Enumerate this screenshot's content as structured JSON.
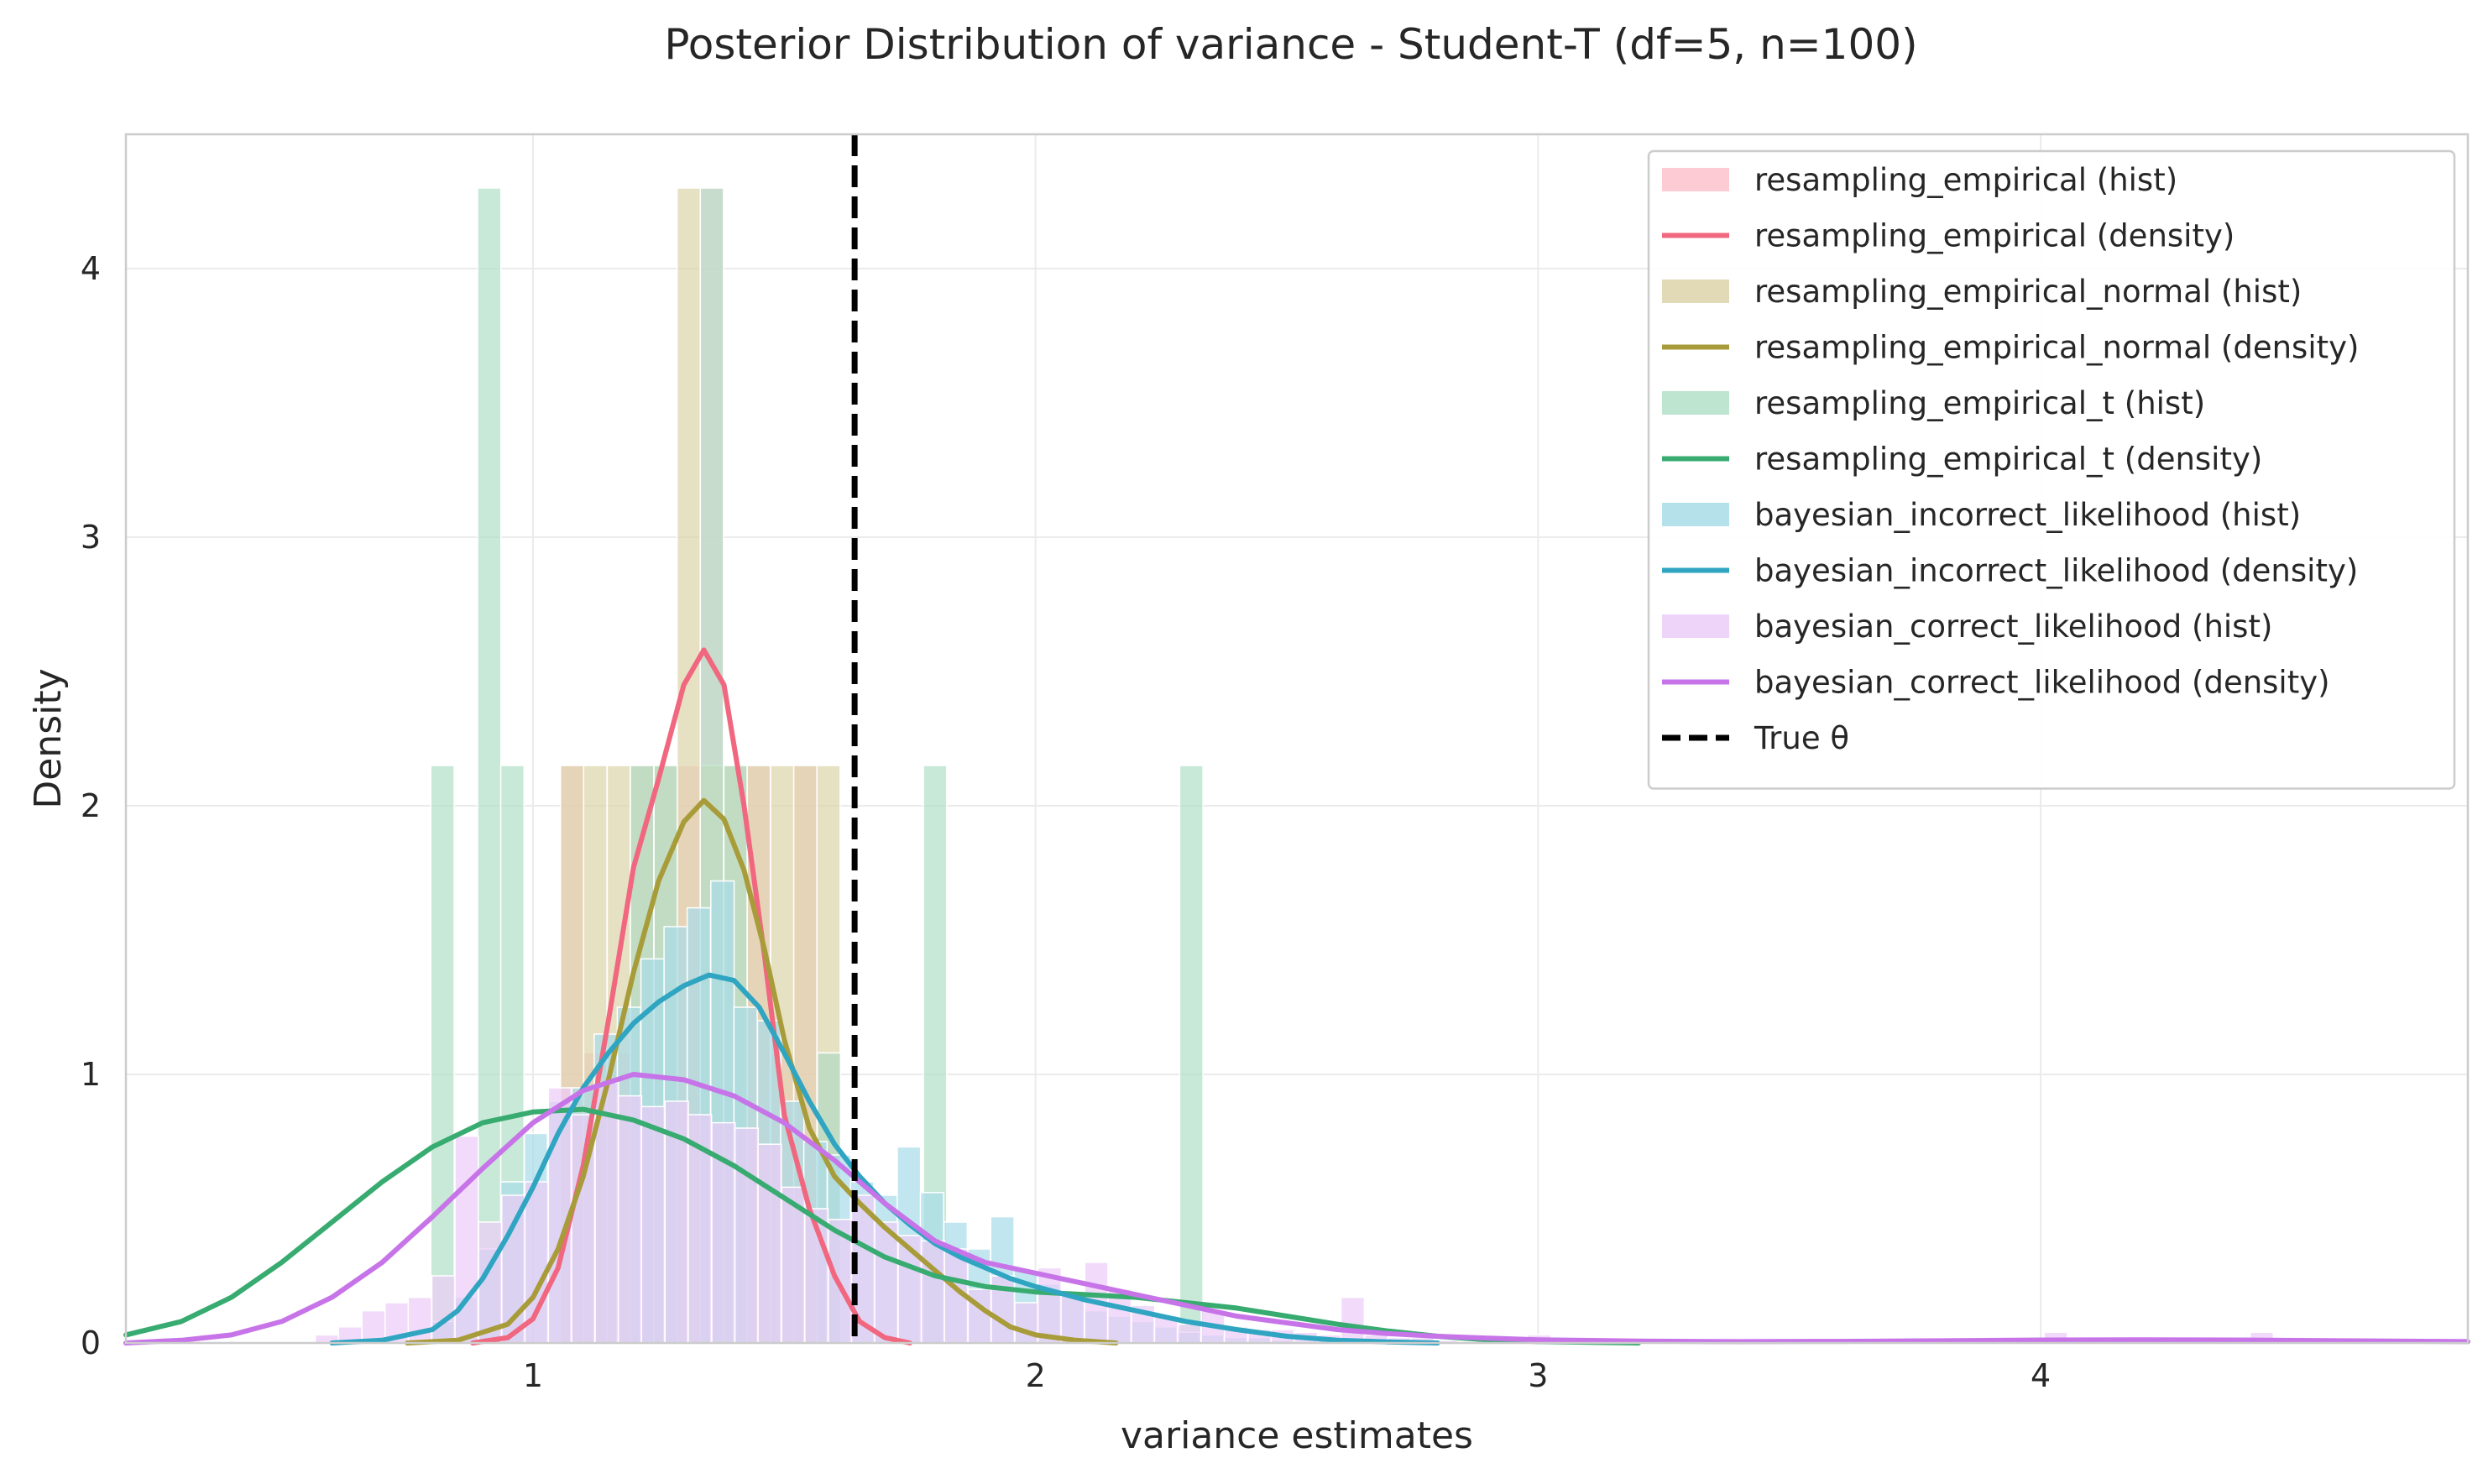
{
  "chart_data": {
    "type": "histogram+density",
    "title": "Posterior Distribution of variance - Student-T (df=5, n=100)",
    "xlabel": "variance estimates",
    "ylabel": "Density",
    "xlim": [
      0.19,
      4.85
    ],
    "ylim": [
      0,
      4.5
    ],
    "xticks": [
      1,
      2,
      3,
      4
    ],
    "yticks": [
      0,
      1,
      2,
      3,
      4
    ],
    "grid": true,
    "legend_position": "top-right",
    "true_theta": {
      "label": "True θ",
      "x": 1.64,
      "color": "#000000"
    },
    "series": [
      {
        "name": "resampling_empirical",
        "hist_label": "resampling_empirical (hist)",
        "density_label": "resampling_empirical (density)",
        "color": "#f0677f",
        "fill": "#fbc2cc",
        "bin_width": 0.0464,
        "hist": [
          [
            1.078,
            2.15
          ],
          [
            1.124,
            1.08
          ],
          [
            1.171,
            1.08
          ],
          [
            1.217,
            2.15
          ],
          [
            1.264,
            2.15
          ],
          [
            1.31,
            2.15
          ],
          [
            1.356,
            4.3
          ],
          [
            1.403,
            2.15
          ],
          [
            1.449,
            2.15
          ],
          [
            1.496,
            1.08
          ],
          [
            1.542,
            2.15
          ],
          [
            1.588,
            1.08
          ]
        ],
        "density": [
          [
            0.88,
            0.0
          ],
          [
            0.95,
            0.02
          ],
          [
            1.0,
            0.09
          ],
          [
            1.05,
            0.28
          ],
          [
            1.1,
            0.66
          ],
          [
            1.15,
            1.2
          ],
          [
            1.2,
            1.77
          ],
          [
            1.25,
            2.1
          ],
          [
            1.3,
            2.45
          ],
          [
            1.34,
            2.58
          ],
          [
            1.38,
            2.45
          ],
          [
            1.42,
            2.0
          ],
          [
            1.46,
            1.45
          ],
          [
            1.5,
            0.85
          ],
          [
            1.55,
            0.5
          ],
          [
            1.6,
            0.25
          ],
          [
            1.65,
            0.08
          ],
          [
            1.7,
            0.02
          ],
          [
            1.75,
            0.0
          ]
        ]
      },
      {
        "name": "resampling_empirical_normal",
        "hist_label": "resampling_empirical_normal (hist)",
        "density_label": "resampling_empirical_normal (density)",
        "color": "#a89c3a",
        "fill": "#ddd4aa",
        "bin_width": 0.0464,
        "hist": [
          [
            1.078,
            2.15
          ],
          [
            1.124,
            2.15
          ],
          [
            1.171,
            2.15
          ],
          [
            1.217,
            2.15
          ],
          [
            1.264,
            2.15
          ],
          [
            1.31,
            4.3
          ],
          [
            1.356,
            2.15
          ],
          [
            1.403,
            2.15
          ],
          [
            1.449,
            2.15
          ],
          [
            1.496,
            2.15
          ],
          [
            1.542,
            2.15
          ],
          [
            1.588,
            2.15
          ]
        ],
        "density": [
          [
            0.75,
            0.0
          ],
          [
            0.85,
            0.01
          ],
          [
            0.95,
            0.07
          ],
          [
            1.0,
            0.17
          ],
          [
            1.05,
            0.35
          ],
          [
            1.1,
            0.62
          ],
          [
            1.15,
            0.98
          ],
          [
            1.2,
            1.38
          ],
          [
            1.25,
            1.72
          ],
          [
            1.3,
            1.94
          ],
          [
            1.34,
            2.02
          ],
          [
            1.38,
            1.95
          ],
          [
            1.42,
            1.76
          ],
          [
            1.46,
            1.47
          ],
          [
            1.5,
            1.13
          ],
          [
            1.55,
            0.8
          ],
          [
            1.6,
            0.62
          ],
          [
            1.65,
            0.52
          ],
          [
            1.7,
            0.43
          ],
          [
            1.75,
            0.35
          ],
          [
            1.8,
            0.27
          ],
          [
            1.85,
            0.19
          ],
          [
            1.9,
            0.12
          ],
          [
            1.95,
            0.06
          ],
          [
            2.0,
            0.03
          ],
          [
            2.08,
            0.01
          ],
          [
            2.16,
            0.0
          ]
        ]
      },
      {
        "name": "resampling_empirical_t",
        "hist_label": "resampling_empirical_t (hist)",
        "density_label": "resampling_empirical_t (density)",
        "color": "#37ab70",
        "fill": "#b2e0c8",
        "bin_width": 0.0464,
        "hist": [
          [
            0.82,
            2.15
          ],
          [
            0.913,
            4.3
          ],
          [
            0.959,
            2.15
          ],
          [
            1.217,
            2.15
          ],
          [
            1.264,
            2.15
          ],
          [
            1.356,
            4.3
          ],
          [
            1.403,
            2.15
          ],
          [
            1.589,
            1.08
          ],
          [
            1.8,
            2.15
          ],
          [
            2.31,
            2.15
          ]
        ],
        "density": [
          [
            0.19,
            0.03
          ],
          [
            0.3,
            0.08
          ],
          [
            0.4,
            0.17
          ],
          [
            0.5,
            0.3
          ],
          [
            0.6,
            0.45
          ],
          [
            0.7,
            0.6
          ],
          [
            0.8,
            0.73
          ],
          [
            0.9,
            0.82
          ],
          [
            1.0,
            0.86
          ],
          [
            1.1,
            0.87
          ],
          [
            1.2,
            0.83
          ],
          [
            1.3,
            0.76
          ],
          [
            1.4,
            0.66
          ],
          [
            1.5,
            0.54
          ],
          [
            1.6,
            0.42
          ],
          [
            1.7,
            0.32
          ],
          [
            1.8,
            0.25
          ],
          [
            1.9,
            0.21
          ],
          [
            2.0,
            0.19
          ],
          [
            2.1,
            0.18
          ],
          [
            2.2,
            0.17
          ],
          [
            2.3,
            0.15
          ],
          [
            2.4,
            0.13
          ],
          [
            2.5,
            0.1
          ],
          [
            2.6,
            0.07
          ],
          [
            2.7,
            0.045
          ],
          [
            2.8,
            0.025
          ],
          [
            2.9,
            0.012
          ],
          [
            3.0,
            0.005
          ],
          [
            3.2,
            0.0
          ]
        ]
      },
      {
        "name": "bayesian_incorrect_likelihood",
        "hist_label": "bayesian_incorrect_likelihood (hist)",
        "density_label": "bayesian_incorrect_likelihood (density)",
        "color": "#2fa5c1",
        "fill": "#a8dce8",
        "bin_width": 0.0464,
        "hist": [
          [
            0.82,
            0.08
          ],
          [
            0.866,
            0.17
          ],
          [
            0.913,
            0.35
          ],
          [
            0.959,
            0.6
          ],
          [
            1.006,
            0.78
          ],
          [
            1.052,
            0.9
          ],
          [
            1.098,
            0.95
          ],
          [
            1.145,
            1.15
          ],
          [
            1.191,
            1.25
          ],
          [
            1.238,
            1.43
          ],
          [
            1.284,
            1.55
          ],
          [
            1.33,
            1.62
          ],
          [
            1.377,
            1.72
          ],
          [
            1.423,
            1.25
          ],
          [
            1.47,
            1.2
          ],
          [
            1.516,
            0.9
          ],
          [
            1.562,
            0.75
          ],
          [
            1.609,
            0.7
          ],
          [
            1.655,
            0.6
          ],
          [
            1.702,
            0.55
          ],
          [
            1.748,
            0.73
          ],
          [
            1.794,
            0.56
          ],
          [
            1.841,
            0.45
          ],
          [
            1.887,
            0.35
          ],
          [
            1.934,
            0.47
          ],
          [
            1.98,
            0.27
          ],
          [
            2.026,
            0.22
          ],
          [
            2.073,
            0.18
          ],
          [
            2.119,
            0.12
          ],
          [
            2.166,
            0.1
          ],
          [
            2.212,
            0.08
          ],
          [
            2.258,
            0.06
          ],
          [
            2.305,
            0.04
          ],
          [
            2.351,
            0.03
          ],
          [
            2.398,
            0.02
          ],
          [
            2.444,
            0.02
          ],
          [
            2.49,
            0.01
          ]
        ],
        "density": [
          [
            0.6,
            0.0
          ],
          [
            0.7,
            0.01
          ],
          [
            0.8,
            0.05
          ],
          [
            0.85,
            0.12
          ],
          [
            0.9,
            0.24
          ],
          [
            0.95,
            0.4
          ],
          [
            1.0,
            0.58
          ],
          [
            1.05,
            0.78
          ],
          [
            1.1,
            0.95
          ],
          [
            1.15,
            1.08
          ],
          [
            1.2,
            1.19
          ],
          [
            1.25,
            1.27
          ],
          [
            1.3,
            1.33
          ],
          [
            1.35,
            1.37
          ],
          [
            1.4,
            1.35
          ],
          [
            1.45,
            1.25
          ],
          [
            1.5,
            1.08
          ],
          [
            1.55,
            0.9
          ],
          [
            1.6,
            0.74
          ],
          [
            1.65,
            0.62
          ],
          [
            1.7,
            0.52
          ],
          [
            1.75,
            0.44
          ],
          [
            1.8,
            0.37
          ],
          [
            1.85,
            0.32
          ],
          [
            1.9,
            0.28
          ],
          [
            1.95,
            0.24
          ],
          [
            2.0,
            0.21
          ],
          [
            2.1,
            0.16
          ],
          [
            2.2,
            0.12
          ],
          [
            2.3,
            0.08
          ],
          [
            2.4,
            0.05
          ],
          [
            2.5,
            0.025
          ],
          [
            2.6,
            0.01
          ],
          [
            2.7,
            0.004
          ],
          [
            2.8,
            0.0
          ]
        ]
      },
      {
        "name": "bayesian_correct_likelihood",
        "hist_label": "bayesian_correct_likelihood (hist)",
        "density_label": "bayesian_correct_likelihood (density)",
        "color": "#c774e8",
        "fill": "#ecccf8",
        "bin_width": 0.0464,
        "hist": [
          [
            0.59,
            0.03
          ],
          [
            0.636,
            0.06
          ],
          [
            0.683,
            0.12
          ],
          [
            0.729,
            0.15
          ],
          [
            0.775,
            0.17
          ],
          [
            0.822,
            0.25
          ],
          [
            0.868,
            0.77
          ],
          [
            0.915,
            0.45
          ],
          [
            0.961,
            0.55
          ],
          [
            1.007,
            0.6
          ],
          [
            1.054,
            0.95
          ],
          [
            1.1,
            0.85
          ],
          [
            1.147,
            0.97
          ],
          [
            1.193,
            0.92
          ],
          [
            1.239,
            0.88
          ],
          [
            1.286,
            0.9
          ],
          [
            1.332,
            0.85
          ],
          [
            1.379,
            0.82
          ],
          [
            1.425,
            0.8
          ],
          [
            1.471,
            0.74
          ],
          [
            1.518,
            0.58
          ],
          [
            1.564,
            0.5
          ],
          [
            1.611,
            0.46
          ],
          [
            1.657,
            0.55
          ],
          [
            1.703,
            0.45
          ],
          [
            1.75,
            0.4
          ],
          [
            1.796,
            0.38
          ],
          [
            1.842,
            0.35
          ],
          [
            1.889,
            0.2
          ],
          [
            1.935,
            0.25
          ],
          [
            1.982,
            0.15
          ],
          [
            2.028,
            0.28
          ],
          [
            2.074,
            0.18
          ],
          [
            2.121,
            0.3
          ],
          [
            2.167,
            0.2
          ],
          [
            2.214,
            0.14
          ],
          [
            2.26,
            0.1
          ],
          [
            2.306,
            0.07
          ],
          [
            2.353,
            0.12
          ],
          [
            2.399,
            0.06
          ],
          [
            2.446,
            0.05
          ],
          [
            2.492,
            0.05
          ],
          [
            2.538,
            0.04
          ],
          [
            2.585,
            0.03
          ],
          [
            2.631,
            0.17
          ],
          [
            2.678,
            0.03
          ],
          [
            2.724,
            0.02
          ],
          [
            2.77,
            0.02
          ],
          [
            2.817,
            0.01
          ],
          [
            2.91,
            0.02
          ],
          [
            3.002,
            0.03
          ],
          [
            4.03,
            0.04
          ],
          [
            4.44,
            0.04
          ]
        ],
        "density": [
          [
            0.19,
            0.0
          ],
          [
            0.3,
            0.01
          ],
          [
            0.4,
            0.03
          ],
          [
            0.5,
            0.08
          ],
          [
            0.6,
            0.17
          ],
          [
            0.7,
            0.3
          ],
          [
            0.8,
            0.47
          ],
          [
            0.9,
            0.65
          ],
          [
            1.0,
            0.82
          ],
          [
            1.1,
            0.94
          ],
          [
            1.2,
            1.0
          ],
          [
            1.3,
            0.98
          ],
          [
            1.4,
            0.92
          ],
          [
            1.5,
            0.82
          ],
          [
            1.6,
            0.68
          ],
          [
            1.7,
            0.52
          ],
          [
            1.8,
            0.38
          ],
          [
            1.9,
            0.3
          ],
          [
            2.0,
            0.26
          ],
          [
            2.1,
            0.22
          ],
          [
            2.2,
            0.18
          ],
          [
            2.3,
            0.14
          ],
          [
            2.4,
            0.1
          ],
          [
            2.5,
            0.075
          ],
          [
            2.6,
            0.05
          ],
          [
            2.7,
            0.035
          ],
          [
            2.8,
            0.025
          ],
          [
            2.9,
            0.018
          ],
          [
            3.0,
            0.012
          ],
          [
            3.2,
            0.007
          ],
          [
            3.4,
            0.005
          ],
          [
            3.6,
            0.006
          ],
          [
            3.8,
            0.008
          ],
          [
            4.0,
            0.011
          ],
          [
            4.2,
            0.012
          ],
          [
            4.4,
            0.011
          ],
          [
            4.6,
            0.008
          ],
          [
            4.85,
            0.005
          ]
        ]
      }
    ]
  }
}
